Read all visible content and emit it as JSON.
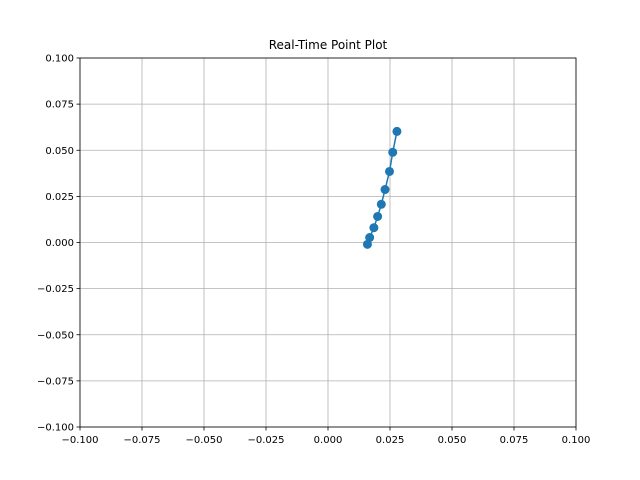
{
  "chart_data": {
    "type": "line",
    "title": "Real-Time Point Plot",
    "xlabel": "",
    "ylabel": "",
    "xlim": [
      -0.1,
      0.1
    ],
    "ylim": [
      -0.1,
      0.1
    ],
    "xticks": [
      -0.1,
      -0.075,
      -0.05,
      -0.025,
      0.0,
      0.025,
      0.05,
      0.075,
      0.1
    ],
    "yticks": [
      -0.1,
      -0.075,
      -0.05,
      -0.025,
      0.0,
      0.025,
      0.05,
      0.075,
      0.1
    ],
    "xtick_labels": [
      "−0.100",
      "−0.075",
      "−0.050",
      "−0.025",
      "0.000",
      "0.025",
      "0.050",
      "0.075",
      "0.100"
    ],
    "ytick_labels": [
      "−0.100",
      "−0.075",
      "−0.050",
      "−0.025",
      "0.000",
      "0.025",
      "0.050",
      "0.075",
      "0.100"
    ],
    "grid": true,
    "legend": "none",
    "series": [
      {
        "color": "#1f77b4",
        "marker": "circle",
        "x": [
          0.0159,
          0.0168,
          0.0185,
          0.02,
          0.0215,
          0.023,
          0.0248,
          0.0261,
          0.0278
        ],
        "y": [
          -0.001,
          0.0027,
          0.008,
          0.0141,
          0.0207,
          0.0287,
          0.0385,
          0.0489,
          0.0602
        ]
      }
    ]
  }
}
